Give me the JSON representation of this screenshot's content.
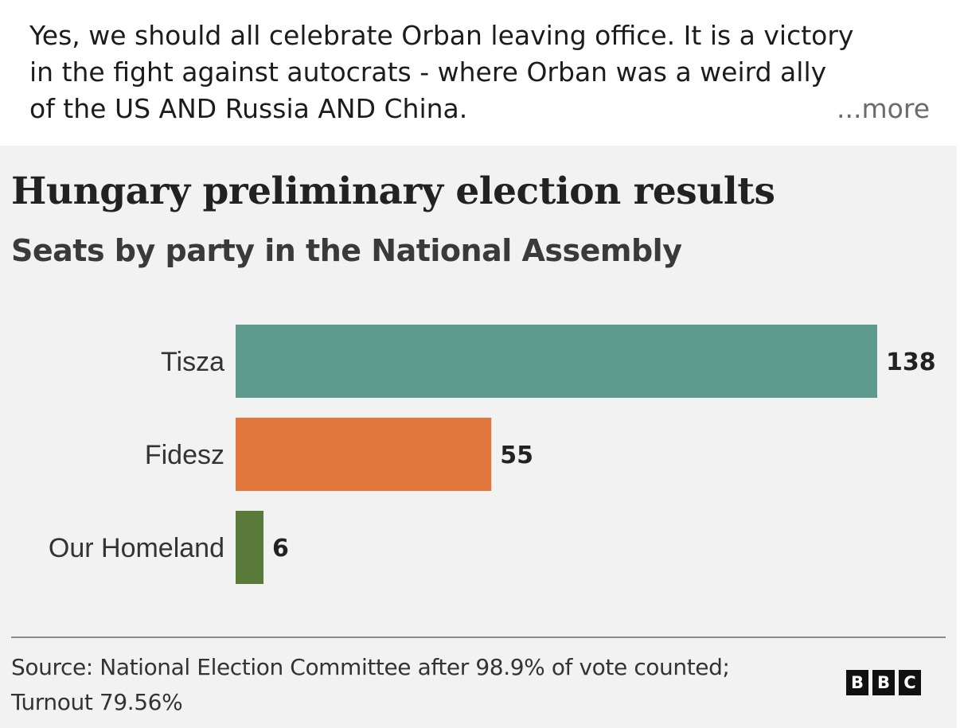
{
  "post": {
    "lines": [
      "Yes, we should all celebrate Orban leaving office. It is a victory",
      "in the fight against autocrats - where Orban was a weird ally",
      "of the US AND Russia AND China."
    ],
    "more_label": "...more"
  },
  "footer": {
    "source": "Source: National Election Committee after 98.9% of vote counted; Turnout 79.56%",
    "logo": [
      "B",
      "B",
      "C"
    ]
  },
  "colors": {
    "Tisza": "#5f9a8f",
    "Fidesz": "#e1773c",
    "Our Homeland": "#5a7a3a"
  },
  "chart_data": {
    "type": "bar",
    "orientation": "horizontal",
    "title": "Hungary preliminary election results",
    "subtitle": "Seats by party in the National Assembly",
    "categories": [
      "Tisza",
      "Fidesz",
      "Our Homeland"
    ],
    "values": [
      138,
      55,
      6
    ],
    "xlabel": "",
    "ylabel": "",
    "xlim": [
      0,
      138
    ],
    "grid": false,
    "legend": "none"
  }
}
